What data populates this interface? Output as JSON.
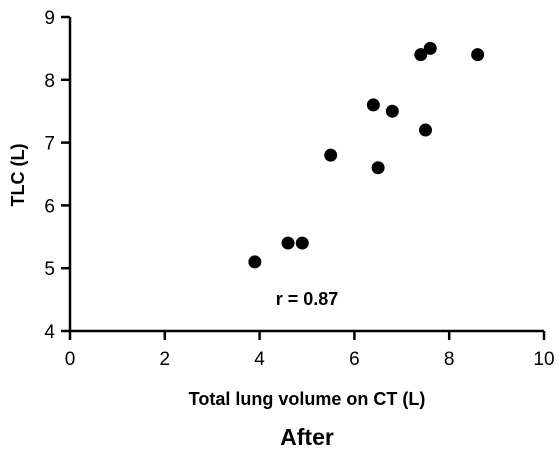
{
  "chart_data": {
    "type": "scatter",
    "title": "After",
    "xlabel": "Total lung volume on CT (L)",
    "ylabel": "TLC (L)",
    "xlim": [
      0,
      10
    ],
    "ylim": [
      4,
      9
    ],
    "xticks": [
      "0",
      "2",
      "4",
      "6",
      "8",
      "10"
    ],
    "yticks": [
      "4",
      "5",
      "6",
      "7",
      "8",
      "9"
    ],
    "annotation": "r = 0.87",
    "grid": false,
    "marker_color": "#000000",
    "points": [
      {
        "x": 3.9,
        "y": 5.1
      },
      {
        "x": 4.6,
        "y": 5.4
      },
      {
        "x": 4.9,
        "y": 5.4
      },
      {
        "x": 5.5,
        "y": 6.8
      },
      {
        "x": 6.4,
        "y": 7.6
      },
      {
        "x": 6.5,
        "y": 6.6
      },
      {
        "x": 6.8,
        "y": 7.5
      },
      {
        "x": 7.4,
        "y": 8.4
      },
      {
        "x": 7.5,
        "y": 7.2
      },
      {
        "x": 7.6,
        "y": 8.5
      },
      {
        "x": 8.6,
        "y": 8.4
      }
    ]
  }
}
